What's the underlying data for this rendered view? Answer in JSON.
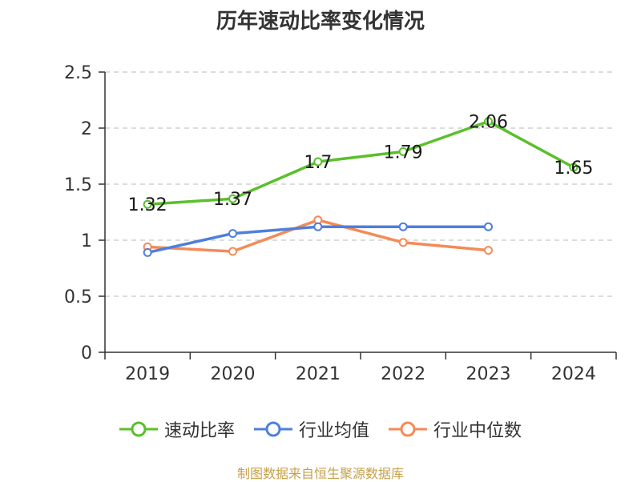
{
  "chart_data": {
    "type": "line",
    "title": "历年速动比率变化情况",
    "categories": [
      "2019",
      "2020",
      "2021",
      "2022",
      "2023",
      "2024"
    ],
    "ylim": [
      0,
      2.5
    ],
    "yticks": [
      "0",
      "0.5",
      "1",
      "1.5",
      "2",
      "2.5"
    ],
    "ytick_values": [
      0,
      0.5,
      1,
      1.5,
      2,
      2.5
    ],
    "grid": true,
    "legend_position": "bottom",
    "series": [
      {
        "name": "速动比率",
        "color": "#5ac02a",
        "values": [
          1.32,
          1.37,
          1.7,
          1.79,
          2.06,
          1.65
        ],
        "labels": [
          "1.32",
          "1.37",
          "1.7",
          "1.79",
          "2.06",
          "1.65"
        ]
      },
      {
        "name": "行业均值",
        "color": "#4e7fdc",
        "values": [
          0.89,
          1.06,
          1.12,
          1.12,
          1.12,
          null
        ]
      },
      {
        "name": "行业中位数",
        "color": "#f58a57",
        "values": [
          0.94,
          0.9,
          1.18,
          0.98,
          0.91,
          null
        ]
      }
    ]
  },
  "source_note": "制图数据来自恒生聚源数据库"
}
